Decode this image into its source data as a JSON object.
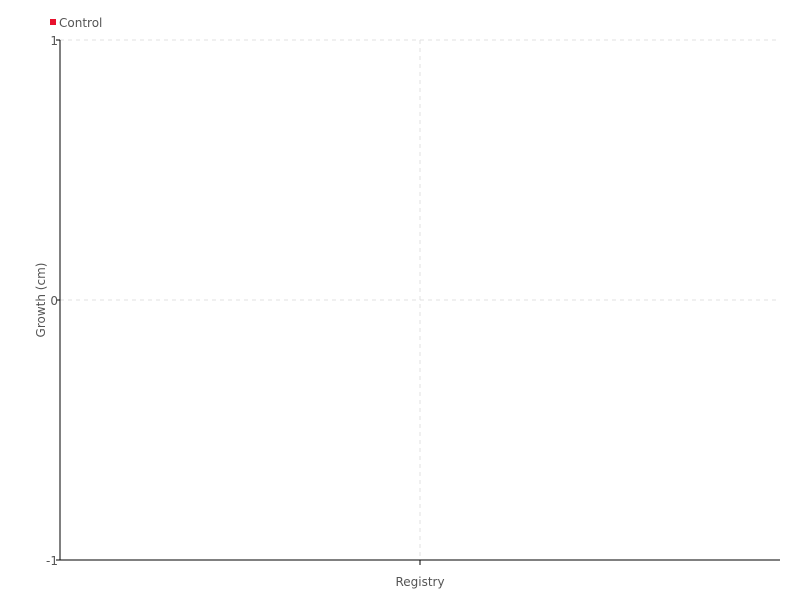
{
  "chart_data": {
    "type": "bar",
    "title": "",
    "xlabel": "",
    "ylabel": "Growth (cm)",
    "categories": [
      "Registry"
    ],
    "series": [
      {
        "name": "Control",
        "color": "#e8112d",
        "values": [
          null
        ]
      }
    ],
    "ylim": [
      -1,
      1
    ],
    "yticks": [
      "1",
      "0",
      "-1"
    ],
    "grid": true,
    "legend": "top-left"
  }
}
